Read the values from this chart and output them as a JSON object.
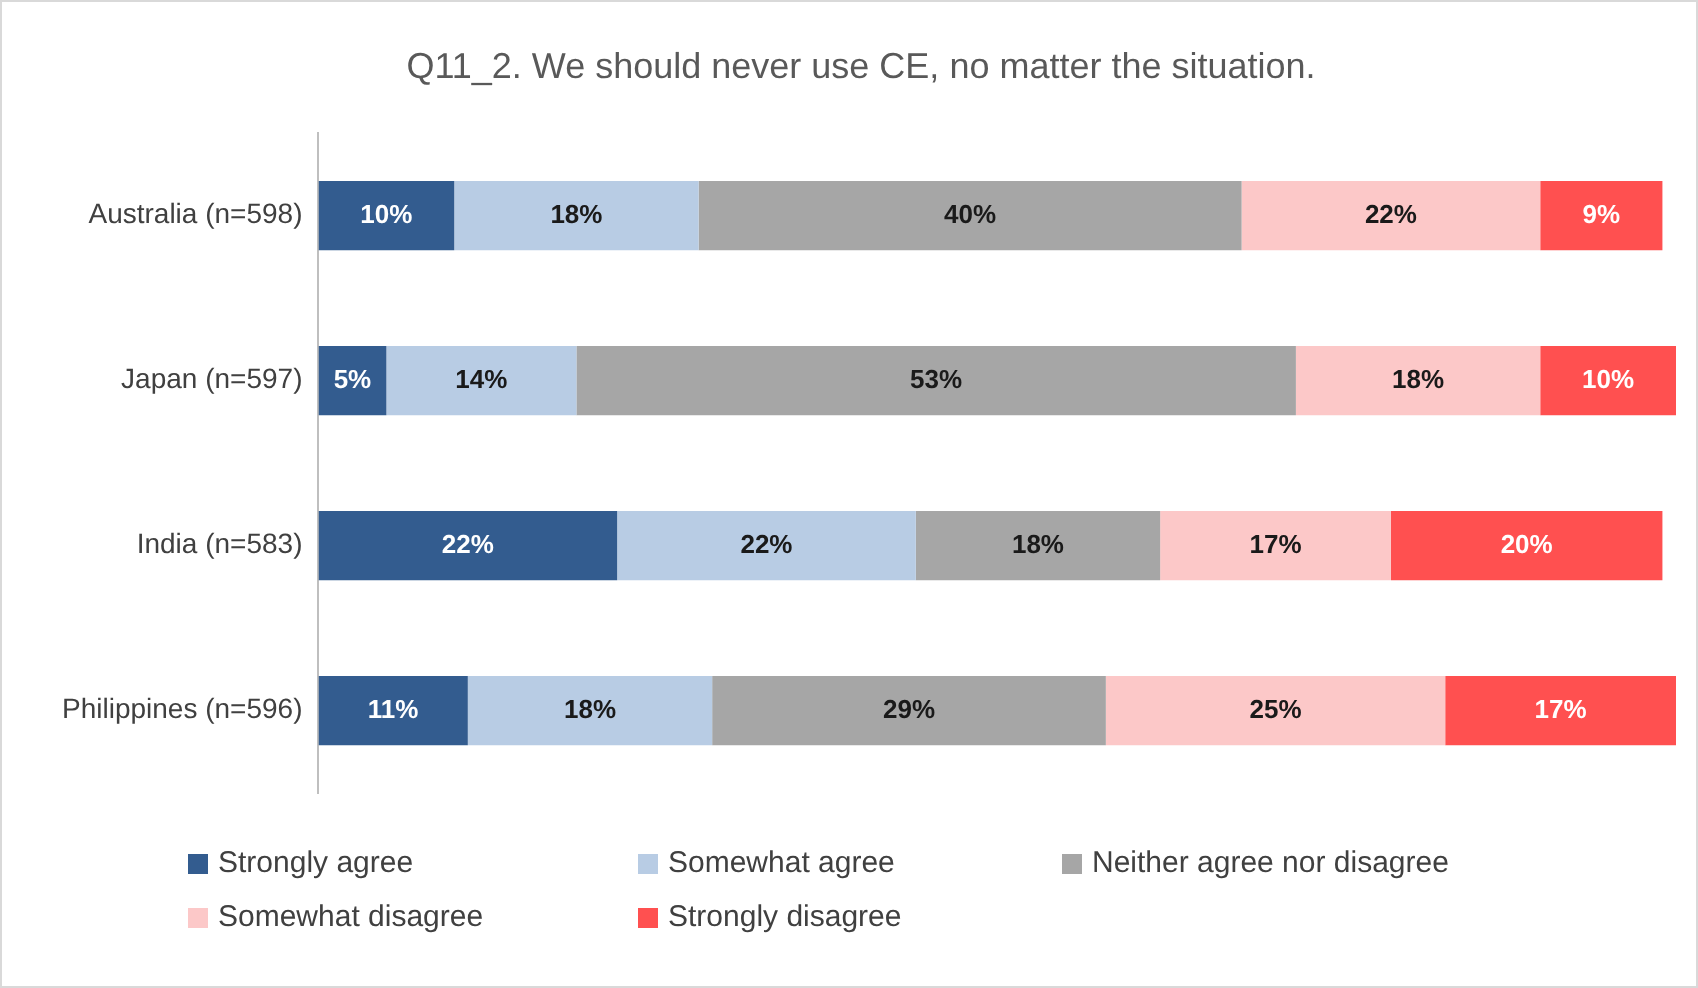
{
  "chart_data": {
    "type": "bar",
    "orientation": "horizontal",
    "stacked": true,
    "title": "Q11_2. We should never use CE, no matter the situation.",
    "categories": [
      "Australia (n=598)",
      "Japan (n=597)",
      "India (n=583)",
      "Philippines (n=596)"
    ],
    "tick_labels": "y",
    "legend": "bottom",
    "series": [
      {
        "name": "Strongly agree",
        "color": "#335c8f",
        "values": [
          10,
          5,
          22,
          11
        ],
        "value_labels": [
          "10%",
          "5%",
          "22%",
          "11%"
        ]
      },
      {
        "name": "Somewhat agree",
        "color": "#b8cce4",
        "values": [
          18,
          14,
          22,
          18
        ],
        "value_labels": [
          "18%",
          "14%",
          "22%",
          "18%"
        ]
      },
      {
        "name": "Neither agree nor disagree",
        "color": "#a6a6a6",
        "values": [
          40,
          53,
          18,
          29
        ],
        "value_labels": [
          "40%",
          "53%",
          "18%",
          "29%"
        ]
      },
      {
        "name": "Somewhat disagree",
        "color": "#fcc8c8",
        "values": [
          22,
          18,
          17,
          25
        ],
        "value_labels": [
          "22%",
          "18%",
          "17%",
          "25%"
        ]
      },
      {
        "name": "Strongly disagree",
        "color": "#ff5050",
        "values": [
          9,
          10,
          20,
          17
        ],
        "value_labels": [
          "9%",
          "10%",
          "20%",
          "17%"
        ]
      }
    ]
  }
}
